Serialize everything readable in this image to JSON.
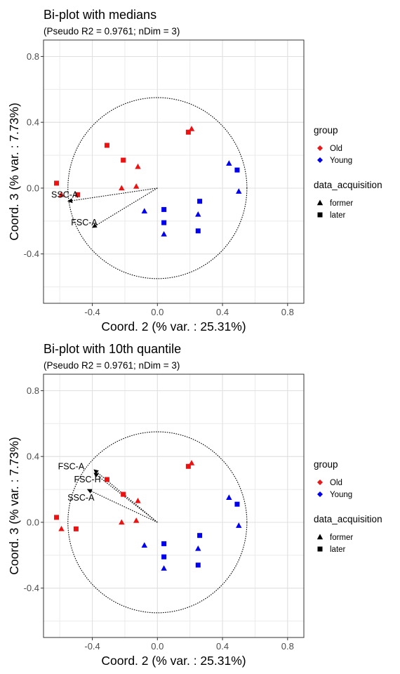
{
  "chart_data": [
    {
      "type": "scatter",
      "title": "Bi-plot with medians",
      "subtitle": "(Pseudo R2 = 0.9761; nDim = 3)",
      "xlabel": "Coord. 2 (% var. : 25.31%)",
      "ylabel": "Coord. 3 (% var. : 7.73%)",
      "xlim": [
        -0.7,
        0.9
      ],
      "ylim": [
        -0.7,
        0.9
      ],
      "xticks": [
        -0.4,
        0.0,
        0.4,
        0.8
      ],
      "xtick_labels": [
        "-0.4",
        "0.0",
        "0.4",
        "0.8"
      ],
      "yticks": [
        -0.4,
        0.0,
        0.4,
        0.8
      ],
      "ytick_labels": [
        "-0.4",
        "0.0",
        "0.4",
        "0.8"
      ],
      "grid": true,
      "circle": {
        "cx": 0,
        "cy": 0,
        "r": 0.55
      },
      "points": [
        {
          "x": -0.62,
          "y": 0.03,
          "group": "Old",
          "acq": "later"
        },
        {
          "x": -0.49,
          "y": -0.04,
          "group": "Old",
          "acq": "later"
        },
        {
          "x": -0.59,
          "y": -0.04,
          "group": "Old",
          "acq": "former"
        },
        {
          "x": -0.31,
          "y": 0.26,
          "group": "Old",
          "acq": "later"
        },
        {
          "x": -0.21,
          "y": 0.17,
          "group": "Old",
          "acq": "later"
        },
        {
          "x": -0.12,
          "y": 0.13,
          "group": "Old",
          "acq": "former"
        },
        {
          "x": -0.22,
          "y": 0.0,
          "group": "Old",
          "acq": "former"
        },
        {
          "x": -0.13,
          "y": 0.01,
          "group": "Old",
          "acq": "former"
        },
        {
          "x": 0.19,
          "y": 0.34,
          "group": "Old",
          "acq": "later"
        },
        {
          "x": 0.21,
          "y": 0.36,
          "group": "Old",
          "acq": "former"
        },
        {
          "x": 0.44,
          "y": 0.15,
          "group": "Young",
          "acq": "former"
        },
        {
          "x": 0.49,
          "y": 0.11,
          "group": "Young",
          "acq": "later"
        },
        {
          "x": 0.5,
          "y": -0.02,
          "group": "Young",
          "acq": "former"
        },
        {
          "x": 0.26,
          "y": -0.08,
          "group": "Young",
          "acq": "later"
        },
        {
          "x": 0.25,
          "y": -0.16,
          "group": "Young",
          "acq": "former"
        },
        {
          "x": 0.25,
          "y": -0.26,
          "group": "Young",
          "acq": "later"
        },
        {
          "x": 0.04,
          "y": -0.13,
          "group": "Young",
          "acq": "later"
        },
        {
          "x": -0.08,
          "y": -0.14,
          "group": "Young",
          "acq": "former"
        },
        {
          "x": 0.04,
          "y": -0.21,
          "group": "Young",
          "acq": "later"
        },
        {
          "x": 0.04,
          "y": -0.28,
          "group": "Young",
          "acq": "former"
        }
      ],
      "arrows": [
        {
          "label": "SSC-A",
          "x": -0.55,
          "y": -0.08,
          "label_x": -0.57,
          "label_y": -0.04
        },
        {
          "label": "FSC-A",
          "x": -0.4,
          "y": -0.24,
          "label_x": -0.45,
          "label_y": -0.21
        }
      ]
    },
    {
      "type": "scatter",
      "title": "Bi-plot with 10th quantile",
      "subtitle": "(Pseudo R2 = 0.9761; nDim = 3)",
      "xlabel": "Coord. 2 (% var. : 25.31%)",
      "ylabel": "Coord. 3 (% var. : 7.73%)",
      "xlim": [
        -0.7,
        0.9
      ],
      "ylim": [
        -0.7,
        0.9
      ],
      "xticks": [
        -0.4,
        0.0,
        0.4,
        0.8
      ],
      "xtick_labels": [
        "-0.4",
        "0.0",
        "0.4",
        "0.8"
      ],
      "yticks": [
        -0.4,
        0.0,
        0.4,
        0.8
      ],
      "ytick_labels": [
        "-0.4",
        "0.0",
        "0.4",
        "0.8"
      ],
      "grid": true,
      "circle": {
        "cx": 0,
        "cy": 0,
        "r": 0.55
      },
      "points": [
        {
          "x": -0.62,
          "y": 0.03,
          "group": "Old",
          "acq": "later"
        },
        {
          "x": -0.5,
          "y": -0.04,
          "group": "Old",
          "acq": "later"
        },
        {
          "x": -0.59,
          "y": -0.04,
          "group": "Old",
          "acq": "former"
        },
        {
          "x": -0.31,
          "y": 0.26,
          "group": "Old",
          "acq": "later"
        },
        {
          "x": -0.21,
          "y": 0.17,
          "group": "Old",
          "acq": "later"
        },
        {
          "x": -0.12,
          "y": 0.13,
          "group": "Old",
          "acq": "former"
        },
        {
          "x": -0.22,
          "y": 0.0,
          "group": "Old",
          "acq": "former"
        },
        {
          "x": -0.13,
          "y": 0.01,
          "group": "Old",
          "acq": "former"
        },
        {
          "x": 0.19,
          "y": 0.34,
          "group": "Old",
          "acq": "later"
        },
        {
          "x": 0.21,
          "y": 0.36,
          "group": "Old",
          "acq": "former"
        },
        {
          "x": 0.44,
          "y": 0.15,
          "group": "Young",
          "acq": "former"
        },
        {
          "x": 0.49,
          "y": 0.11,
          "group": "Young",
          "acq": "later"
        },
        {
          "x": 0.5,
          "y": -0.02,
          "group": "Young",
          "acq": "former"
        },
        {
          "x": 0.26,
          "y": -0.08,
          "group": "Young",
          "acq": "later"
        },
        {
          "x": 0.25,
          "y": -0.16,
          "group": "Young",
          "acq": "former"
        },
        {
          "x": 0.25,
          "y": -0.26,
          "group": "Young",
          "acq": "later"
        },
        {
          "x": 0.04,
          "y": -0.13,
          "group": "Young",
          "acq": "later"
        },
        {
          "x": -0.08,
          "y": -0.14,
          "group": "Young",
          "acq": "former"
        },
        {
          "x": 0.04,
          "y": -0.21,
          "group": "Young",
          "acq": "later"
        },
        {
          "x": 0.04,
          "y": -0.28,
          "group": "Young",
          "acq": "former"
        }
      ],
      "arrows": [
        {
          "label": "FSC-A",
          "x": -0.39,
          "y": 0.32,
          "label_x": -0.53,
          "label_y": 0.34
        },
        {
          "label": "FSC-H",
          "x": -0.39,
          "y": 0.3,
          "label_x": -0.43,
          "label_y": 0.26
        },
        {
          "label": "SSC-A",
          "x": -0.43,
          "y": 0.2,
          "label_x": -0.47,
          "label_y": 0.15
        }
      ]
    }
  ],
  "legend": {
    "group_title": "group",
    "group_items": [
      {
        "label": "Old",
        "color": "#e41a1c"
      },
      {
        "label": "Young",
        "color": "#0000ee"
      }
    ],
    "acq_title": "data_acquisition",
    "acq_items": [
      {
        "label": "former",
        "shape": "triangle"
      },
      {
        "label": "later",
        "shape": "square"
      }
    ]
  },
  "colors": {
    "Old": "#ee1111",
    "Young": "#0000ee",
    "panel_border": "#333333",
    "grid": "#ebebeb",
    "text": "#000000",
    "tick": "#4d4d4d"
  }
}
